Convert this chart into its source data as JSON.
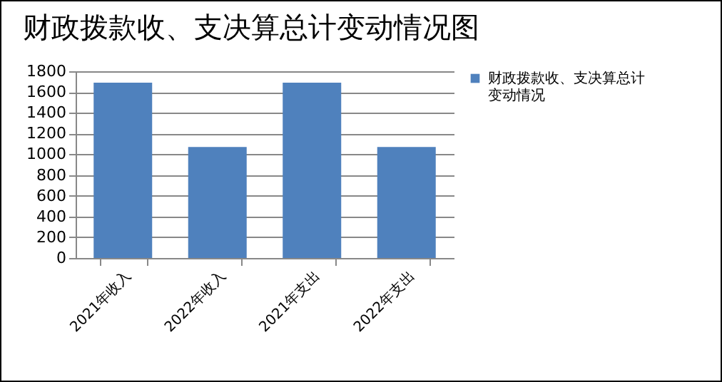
{
  "chart_data": {
    "type": "bar",
    "title": "财政拨款收、支决算总计变动情况图",
    "categories": [
      "2021年收入",
      "2022年收入",
      "2021年支出",
      "2022年支出"
    ],
    "series": [
      {
        "name": "财政拨款收、支决算总计变动情况",
        "color": "#4f81bd",
        "values": [
          1690,
          1070,
          1690,
          1070
        ]
      }
    ],
    "ylim": [
      0,
      1800
    ],
    "yticks": [
      0,
      200,
      400,
      600,
      800,
      1000,
      1200,
      1400,
      1600,
      1800
    ],
    "grid": "y",
    "legend": "right"
  }
}
